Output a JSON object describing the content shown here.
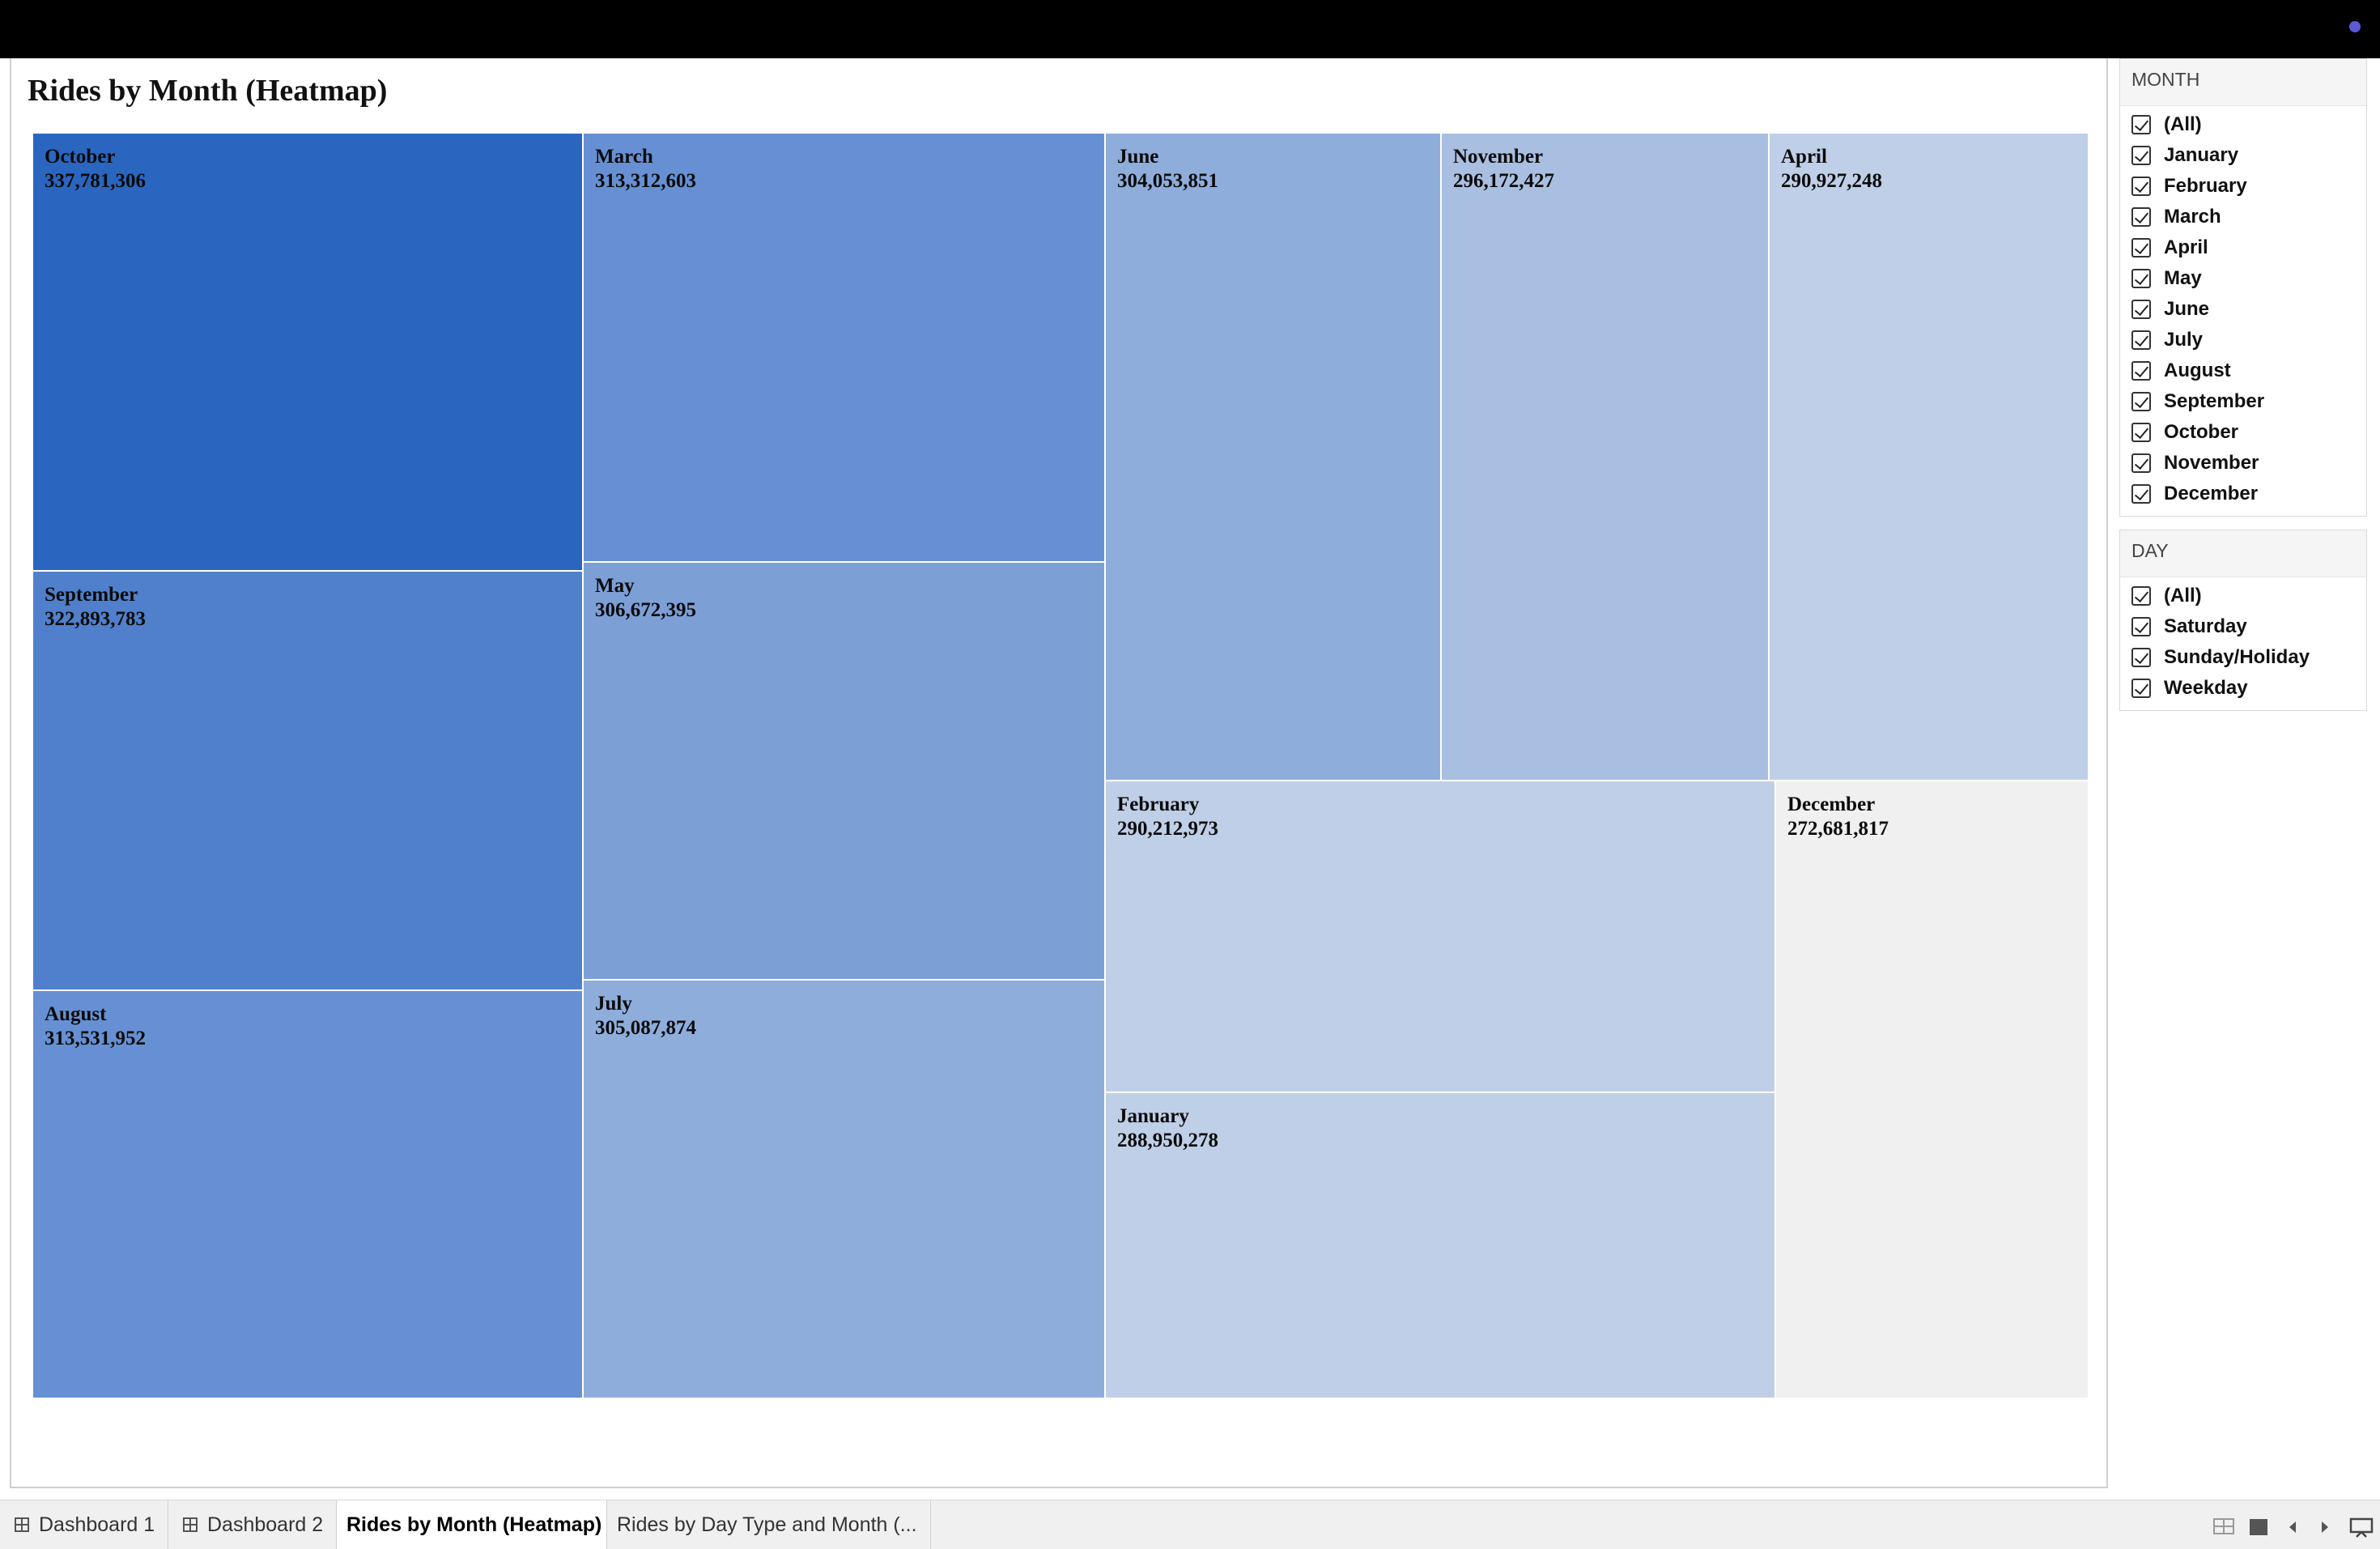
{
  "sheet": {
    "title": "Rides by Month (Heatmap)"
  },
  "chart_data": {
    "type": "heatmap",
    "title": "Rides by Month (Heatmap)",
    "cells": [
      {
        "month": "October",
        "rides": "337,781,306",
        "value": 337781306,
        "color": "#2a66c0"
      },
      {
        "month": "September",
        "rides": "322,893,783",
        "value": 322893783,
        "color": "#5080cc"
      },
      {
        "month": "August",
        "rides": "313,531,952",
        "value": 313531952,
        "color": "#6690d3"
      },
      {
        "month": "March",
        "rides": "313,312,603",
        "value": 313312603,
        "color": "#6690d3"
      },
      {
        "month": "May",
        "rides": "306,672,395",
        "value": 306672395,
        "color": "#7c9fd6"
      },
      {
        "month": "July",
        "rides": "305,087,874",
        "value": 305087874,
        "color": "#8eaddb"
      },
      {
        "month": "June",
        "rides": "304,053,851",
        "value": 304053851,
        "color": "#8eaddb"
      },
      {
        "month": "November",
        "rides": "296,172,427",
        "value": 296172427,
        "color": "#a9bfe1"
      },
      {
        "month": "April",
        "rides": "290,927,248",
        "value": 290927248,
        "color": "#bfcfe7"
      },
      {
        "month": "February",
        "rides": "290,212,973",
        "value": 290212973,
        "color": "#bfcfe7"
      },
      {
        "month": "January",
        "rides": "288,950,278",
        "value": 288950278,
        "color": "#bfcfe7"
      },
      {
        "month": "December",
        "rides": "272,681,817",
        "value": 272681817,
        "color": "#f0f0f0"
      }
    ]
  },
  "filters": {
    "month": {
      "header": "MONTH",
      "items": [
        "(All)",
        "January",
        "February",
        "March",
        "April",
        "May",
        "June",
        "July",
        "August",
        "September",
        "October",
        "November",
        "December"
      ]
    },
    "day": {
      "header": "DAY",
      "items": [
        "(All)",
        "Saturday",
        "Sunday/Holiday",
        "Weekday"
      ]
    }
  },
  "tabs": [
    {
      "label": "Dashboard 1",
      "icon": "dashboard-grid-icon",
      "active": false
    },
    {
      "label": "Dashboard 2",
      "icon": "dashboard-grid-icon",
      "active": false
    },
    {
      "label": "Rides by Month (Heatmap)",
      "icon": "",
      "active": true
    },
    {
      "label": "Rides by Day Type and Month (...",
      "icon": "",
      "active": false
    }
  ],
  "colors": {
    "top_bar": "#000000",
    "indicator_dot": "#5b5bd6",
    "tab_strip": "#f0f0f0"
  }
}
